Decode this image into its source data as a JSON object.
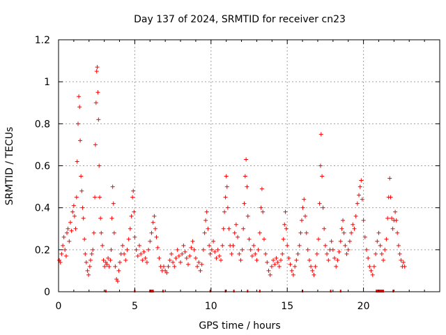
{
  "chart_data": {
    "type": "scatter",
    "title": "Day 137 of 2024, SRMTID for receiver cn23",
    "xlabel": "GPS time / hours",
    "ylabel": "SRMTID / TECUs",
    "xlim": [
      0,
      25
    ],
    "ylim": [
      0,
      1.2
    ],
    "x_ticks": [
      0,
      5,
      10,
      15,
      20
    ],
    "y_ticks": [
      0,
      0.2,
      0.4,
      0.6,
      0.8,
      1,
      1.2
    ],
    "x_tick_labels": [
      "0",
      "5",
      "10",
      "15",
      "20"
    ],
    "y_tick_labels": [
      "0",
      "0.2",
      "0.4",
      "0.6",
      "0.8",
      "1",
      "1.2"
    ],
    "grid": true,
    "marker": "+",
    "marker_color": "#ff0000",
    "series": [
      {
        "name": "SRMTID",
        "points": [
          [
            0.05,
            0.15
          ],
          [
            0.12,
            0.14
          ],
          [
            0.2,
            0.18
          ],
          [
            0.28,
            0.22
          ],
          [
            0.35,
            0.26
          ],
          [
            0.42,
            0.2
          ],
          [
            0.5,
            0.17
          ],
          [
            0.55,
            0.28
          ],
          [
            0.62,
            0.3
          ],
          [
            0.7,
            0.24
          ],
          [
            0.78,
            0.33
          ],
          [
            0.85,
            0.29
          ],
          [
            0.92,
            0.38
          ],
          [
            1.0,
            0.41
          ],
          [
            1.05,
            0.36
          ],
          [
            1.12,
            0.3
          ],
          [
            1.18,
            0.45
          ],
          [
            1.22,
            0.62
          ],
          [
            1.28,
            0.8
          ],
          [
            1.33,
            0.93
          ],
          [
            1.38,
            0.88
          ],
          [
            1.42,
            0.72
          ],
          [
            1.47,
            0.55
          ],
          [
            1.52,
            0.48
          ],
          [
            1.58,
            0.4
          ],
          [
            1.63,
            0.35
          ],
          [
            1.7,
            0.25
          ],
          [
            1.75,
            0.18
          ],
          [
            1.82,
            0.14
          ],
          [
            1.9,
            0.1
          ],
          [
            1.97,
            0.08
          ],
          [
            2.05,
            0.12
          ],
          [
            2.1,
            0.15
          ],
          [
            2.18,
            0.18
          ],
          [
            2.25,
            0.2
          ],
          [
            2.32,
            0.28
          ],
          [
            2.38,
            0.45
          ],
          [
            2.42,
            0.7
          ],
          [
            2.46,
            0.9
          ],
          [
            2.5,
            1.05
          ],
          [
            2.54,
            1.07
          ],
          [
            2.58,
            0.95
          ],
          [
            2.62,
            0.82
          ],
          [
            2.66,
            0.6
          ],
          [
            2.7,
            0.45
          ],
          [
            2.75,
            0.35
          ],
          [
            2.8,
            0.28
          ],
          [
            2.88,
            0.22
          ],
          [
            2.95,
            0.15
          ],
          [
            3.02,
            0.12
          ],
          [
            3.1,
            0.14
          ],
          [
            3.18,
            0.13
          ],
          [
            3.25,
            0.16
          ],
          [
            3.32,
            0.12
          ],
          [
            3.4,
            0.15
          ],
          [
            3.45,
            0.2
          ],
          [
            3.5,
            0.35
          ],
          [
            3.55,
            0.5
          ],
          [
            3.6,
            0.42
          ],
          [
            3.65,
            0.28
          ],
          [
            3.72,
            0.12
          ],
          [
            3.8,
            0.06
          ],
          [
            3.88,
            0.05
          ],
          [
            3.95,
            0.1
          ],
          [
            4.02,
            0.14
          ],
          [
            4.1,
            0.18
          ],
          [
            4.2,
            0.22
          ],
          [
            4.3,
            0.18
          ],
          [
            4.4,
            0.15
          ],
          [
            4.5,
            0.2
          ],
          [
            4.6,
            0.25
          ],
          [
            4.7,
            0.3
          ],
          [
            4.78,
            0.36
          ],
          [
            4.85,
            0.45
          ],
          [
            4.9,
            0.48
          ],
          [
            4.95,
            0.38
          ],
          [
            5.0,
            0.26
          ],
          [
            5.1,
            0.2
          ],
          [
            5.2,
            0.17
          ],
          [
            5.3,
            0.22
          ],
          [
            5.4,
            0.18
          ],
          [
            5.5,
            0.15
          ],
          [
            5.6,
            0.19
          ],
          [
            5.7,
            0.16
          ],
          [
            5.8,
            0.14
          ],
          [
            5.9,
            0.2
          ],
          [
            6.0,
            0.24
          ],
          [
            6.1,
            0.28
          ],
          [
            6.2,
            0.33
          ],
          [
            6.28,
            0.36
          ],
          [
            6.35,
            0.3
          ],
          [
            6.42,
            0.26
          ],
          [
            6.5,
            0.21
          ],
          [
            6.6,
            0.16
          ],
          [
            6.7,
            0.12
          ],
          [
            6.8,
            0.1
          ],
          [
            6.9,
            0.12
          ],
          [
            7.0,
            0.1
          ],
          [
            7.1,
            0.09
          ],
          [
            7.2,
            0.12
          ],
          [
            7.3,
            0.15
          ],
          [
            7.4,
            0.18
          ],
          [
            7.5,
            0.14
          ],
          [
            7.6,
            0.12
          ],
          [
            7.7,
            0.16
          ],
          [
            7.8,
            0.2
          ],
          [
            7.9,
            0.17
          ],
          [
            8.0,
            0.14
          ],
          [
            8.1,
            0.18
          ],
          [
            8.2,
            0.22
          ],
          [
            8.3,
            0.19
          ],
          [
            8.4,
            0.16
          ],
          [
            8.5,
            0.13
          ],
          [
            8.6,
            0.17
          ],
          [
            8.7,
            0.21
          ],
          [
            8.8,
            0.24
          ],
          [
            8.9,
            0.2
          ],
          [
            9.0,
            0.16
          ],
          [
            9.1,
            0.12
          ],
          [
            9.2,
            0.14
          ],
          [
            9.3,
            0.1
          ],
          [
            9.4,
            0.13
          ],
          [
            9.5,
            0.2
          ],
          [
            9.58,
            0.28
          ],
          [
            9.65,
            0.34
          ],
          [
            9.72,
            0.38
          ],
          [
            9.8,
            0.3
          ],
          [
            9.88,
            0.22
          ],
          [
            9.95,
            0.18
          ],
          [
            10.05,
            0.2
          ],
          [
            10.15,
            0.24
          ],
          [
            10.25,
            0.19
          ],
          [
            10.35,
            0.16
          ],
          [
            10.45,
            0.2
          ],
          [
            10.55,
            0.17
          ],
          [
            10.65,
            0.15
          ],
          [
            10.75,
            0.22
          ],
          [
            10.82,
            0.3
          ],
          [
            10.88,
            0.38
          ],
          [
            10.95,
            0.45
          ],
          [
            11.0,
            0.55
          ],
          [
            11.05,
            0.5
          ],
          [
            11.1,
            0.4
          ],
          [
            11.18,
            0.3
          ],
          [
            11.25,
            0.22
          ],
          [
            11.35,
            0.18
          ],
          [
            11.45,
            0.22
          ],
          [
            11.55,
            0.28
          ],
          [
            11.65,
            0.32
          ],
          [
            11.75,
            0.26
          ],
          [
            11.85,
            0.18
          ],
          [
            11.95,
            0.15
          ],
          [
            12.05,
            0.2
          ],
          [
            12.12,
            0.3
          ],
          [
            12.18,
            0.42
          ],
          [
            12.24,
            0.55
          ],
          [
            12.3,
            0.63
          ],
          [
            12.36,
            0.5
          ],
          [
            12.42,
            0.36
          ],
          [
            12.5,
            0.25
          ],
          [
            12.6,
            0.2
          ],
          [
            12.7,
            0.17
          ],
          [
            12.8,
            0.22
          ],
          [
            12.9,
            0.18
          ],
          [
            13.0,
            0.15
          ],
          [
            13.1,
            0.2
          ],
          [
            13.2,
            0.28
          ],
          [
            13.28,
            0.4
          ],
          [
            13.34,
            0.49
          ],
          [
            13.4,
            0.38
          ],
          [
            13.48,
            0.25
          ],
          [
            13.58,
            0.18
          ],
          [
            13.68,
            0.14
          ],
          [
            13.78,
            0.1
          ],
          [
            13.88,
            0.08
          ],
          [
            13.98,
            0.12
          ],
          [
            14.08,
            0.15
          ],
          [
            14.18,
            0.13
          ],
          [
            14.28,
            0.16
          ],
          [
            14.38,
            0.14
          ],
          [
            14.48,
            0.12
          ],
          [
            14.58,
            0.15
          ],
          [
            14.68,
            0.18
          ],
          [
            14.75,
            0.25
          ],
          [
            14.82,
            0.32
          ],
          [
            14.88,
            0.38
          ],
          [
            14.94,
            0.3
          ],
          [
            15.0,
            0.22
          ],
          [
            15.1,
            0.16
          ],
          [
            15.2,
            0.13
          ],
          [
            15.3,
            0.1
          ],
          [
            15.4,
            0.08
          ],
          [
            15.5,
            0.12
          ],
          [
            15.6,
            0.15
          ],
          [
            15.7,
            0.18
          ],
          [
            15.8,
            0.22
          ],
          [
            15.88,
            0.28
          ],
          [
            15.95,
            0.34
          ],
          [
            16.02,
            0.4
          ],
          [
            16.1,
            0.44
          ],
          [
            16.18,
            0.36
          ],
          [
            16.26,
            0.28
          ],
          [
            16.35,
            0.2
          ],
          [
            16.45,
            0.15
          ],
          [
            16.55,
            0.12
          ],
          [
            16.65,
            0.1
          ],
          [
            16.75,
            0.08
          ],
          [
            16.85,
            0.12
          ],
          [
            16.95,
            0.18
          ],
          [
            17.05,
            0.25
          ],
          [
            17.12,
            0.42
          ],
          [
            17.18,
            0.6
          ],
          [
            17.22,
            0.75
          ],
          [
            17.28,
            0.55
          ],
          [
            17.35,
            0.4
          ],
          [
            17.42,
            0.3
          ],
          [
            17.5,
            0.22
          ],
          [
            17.6,
            0.18
          ],
          [
            17.7,
            0.15
          ],
          [
            17.8,
            0.2
          ],
          [
            17.9,
            0.24
          ],
          [
            18.0,
            0.2
          ],
          [
            18.1,
            0.16
          ],
          [
            18.2,
            0.12
          ],
          [
            18.3,
            0.15
          ],
          [
            18.4,
            0.19
          ],
          [
            18.5,
            0.24
          ],
          [
            18.58,
            0.3
          ],
          [
            18.65,
            0.34
          ],
          [
            18.72,
            0.28
          ],
          [
            18.8,
            0.22
          ],
          [
            18.9,
            0.18
          ],
          [
            19.0,
            0.2
          ],
          [
            19.1,
            0.24
          ],
          [
            19.2,
            0.28
          ],
          [
            19.3,
            0.32
          ],
          [
            19.4,
            0.3
          ],
          [
            19.5,
            0.36
          ],
          [
            19.6,
            0.42
          ],
          [
            19.7,
            0.46
          ],
          [
            19.78,
            0.5
          ],
          [
            19.85,
            0.53
          ],
          [
            19.92,
            0.44
          ],
          [
            20.0,
            0.34
          ],
          [
            20.1,
            0.26
          ],
          [
            20.2,
            0.2
          ],
          [
            20.3,
            0.16
          ],
          [
            20.4,
            0.12
          ],
          [
            20.5,
            0.1
          ],
          [
            20.6,
            0.08
          ],
          [
            20.7,
            0.12
          ],
          [
            20.8,
            0.18
          ],
          [
            20.9,
            0.24
          ],
          [
            21.0,
            0.28
          ],
          [
            21.1,
            0.22
          ],
          [
            21.2,
            0.18
          ],
          [
            21.3,
            0.15
          ],
          [
            21.4,
            0.2
          ],
          [
            21.5,
            0.25
          ],
          [
            21.58,
            0.35
          ],
          [
            21.65,
            0.45
          ],
          [
            21.72,
            0.54
          ],
          [
            21.78,
            0.45
          ],
          [
            21.85,
            0.35
          ],
          [
            21.92,
            0.3
          ],
          [
            22.0,
            0.34
          ],
          [
            22.08,
            0.38
          ],
          [
            22.15,
            0.34
          ],
          [
            22.22,
            0.28
          ],
          [
            22.3,
            0.22
          ],
          [
            22.38,
            0.18
          ],
          [
            22.46,
            0.15
          ],
          [
            22.55,
            0.12
          ],
          [
            22.62,
            0.14
          ],
          [
            22.7,
            0.12
          ]
        ]
      }
    ],
    "gap_markers_x": [
      3.1,
      5.0,
      6.0,
      6.05,
      6.1,
      6.15,
      6.2,
      6.85,
      9.95,
      10.95,
      11.5,
      12.4,
      13.2,
      16.0,
      17.85,
      18.5,
      20.85,
      20.9,
      20.95,
      21.0,
      21.05,
      21.1,
      21.15,
      21.2,
      21.25,
      21.3,
      21.95
    ]
  }
}
